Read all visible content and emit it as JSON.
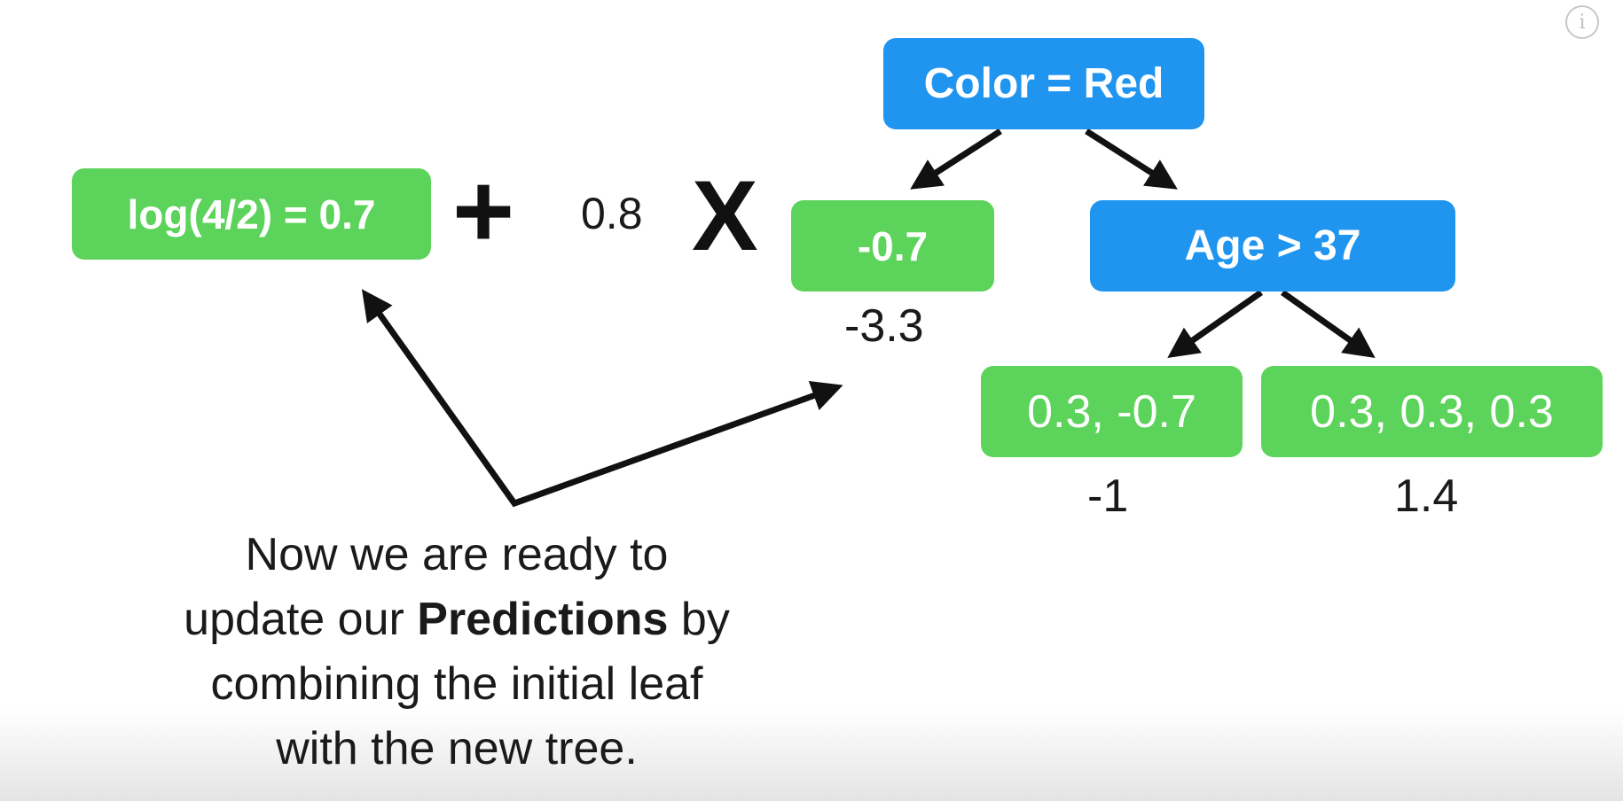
{
  "initial_leaf": "log(4/2) = 0.7",
  "plus_sign": "+",
  "learning_rate": "0.8",
  "times_sign": "X",
  "root_node": "Color = Red",
  "left_leaf": {
    "label": "-0.7",
    "output": "-3.3"
  },
  "right_node": "Age > 37",
  "leaf_age_left": {
    "label": "0.3, -0.7",
    "output": "-1"
  },
  "leaf_age_right": {
    "label": "0.3, 0.3, 0.3",
    "output": "1.4"
  },
  "caption": {
    "line1": "Now we are ready to",
    "line2_pre": "update our ",
    "line2_bold": "Predictions",
    "line2_post": " by",
    "line3": "combining the initial leaf",
    "line4": "with the new tree."
  },
  "info_icon": "i",
  "colors": {
    "leaf_green": "#5cd35a",
    "node_blue": "#1f95f0",
    "arrow": "#111111"
  }
}
